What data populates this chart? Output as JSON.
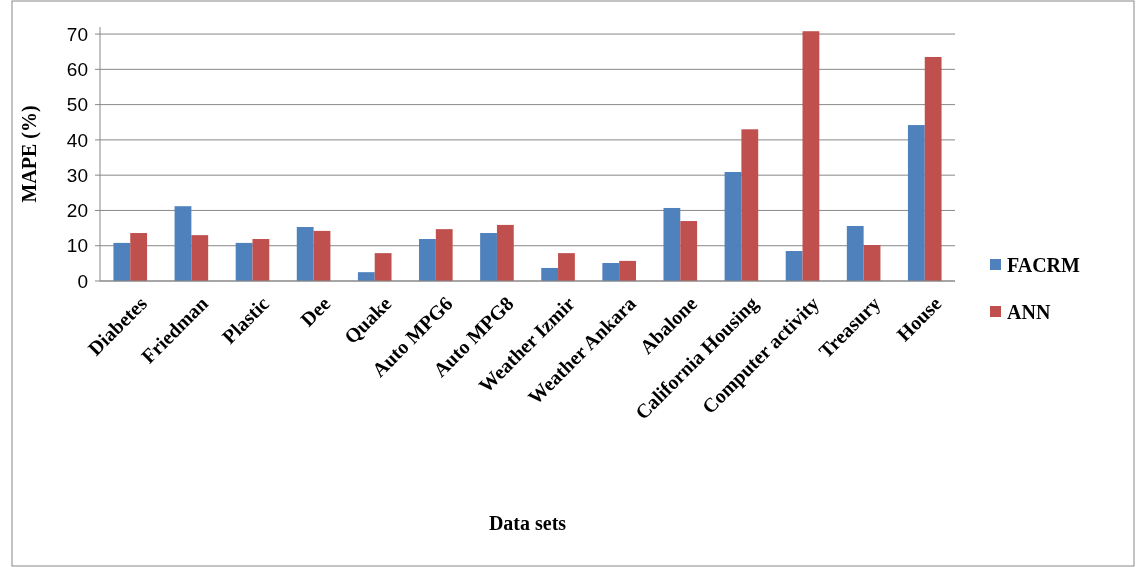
{
  "chart_data": {
    "type": "bar",
    "xlabel": "Data sets",
    "ylabel": "MAPE (%)",
    "categories": [
      "Diabetes",
      "Friedman",
      "Plastic",
      "Dee",
      "Quake",
      "Auto MPG6",
      "Auto MPG8",
      "Weather Izmir",
      "Weather Ankara",
      "Abalone",
      "California Housing",
      "Computer activity",
      "Treasury",
      "House"
    ],
    "series": [
      {
        "name": "FACRM",
        "color": "#4f81bd",
        "values": [
          10.8,
          21.2,
          10.8,
          15.3,
          2.5,
          11.9,
          13.6,
          3.7,
          5.1,
          20.7,
          30.9,
          8.5,
          15.6,
          44.2
        ]
      },
      {
        "name": "ANN",
        "color": "#c0504d",
        "values": [
          13.6,
          13,
          11.9,
          14.2,
          7.9,
          14.7,
          15.9,
          7.9,
          5.7,
          17,
          43,
          70.8,
          10.2,
          63.5
        ]
      }
    ],
    "ylim": [
      0,
      72
    ],
    "yticks": [
      0,
      10,
      20,
      30,
      40,
      50,
      60,
      70
    ],
    "grid": "y",
    "legend": "right"
  }
}
